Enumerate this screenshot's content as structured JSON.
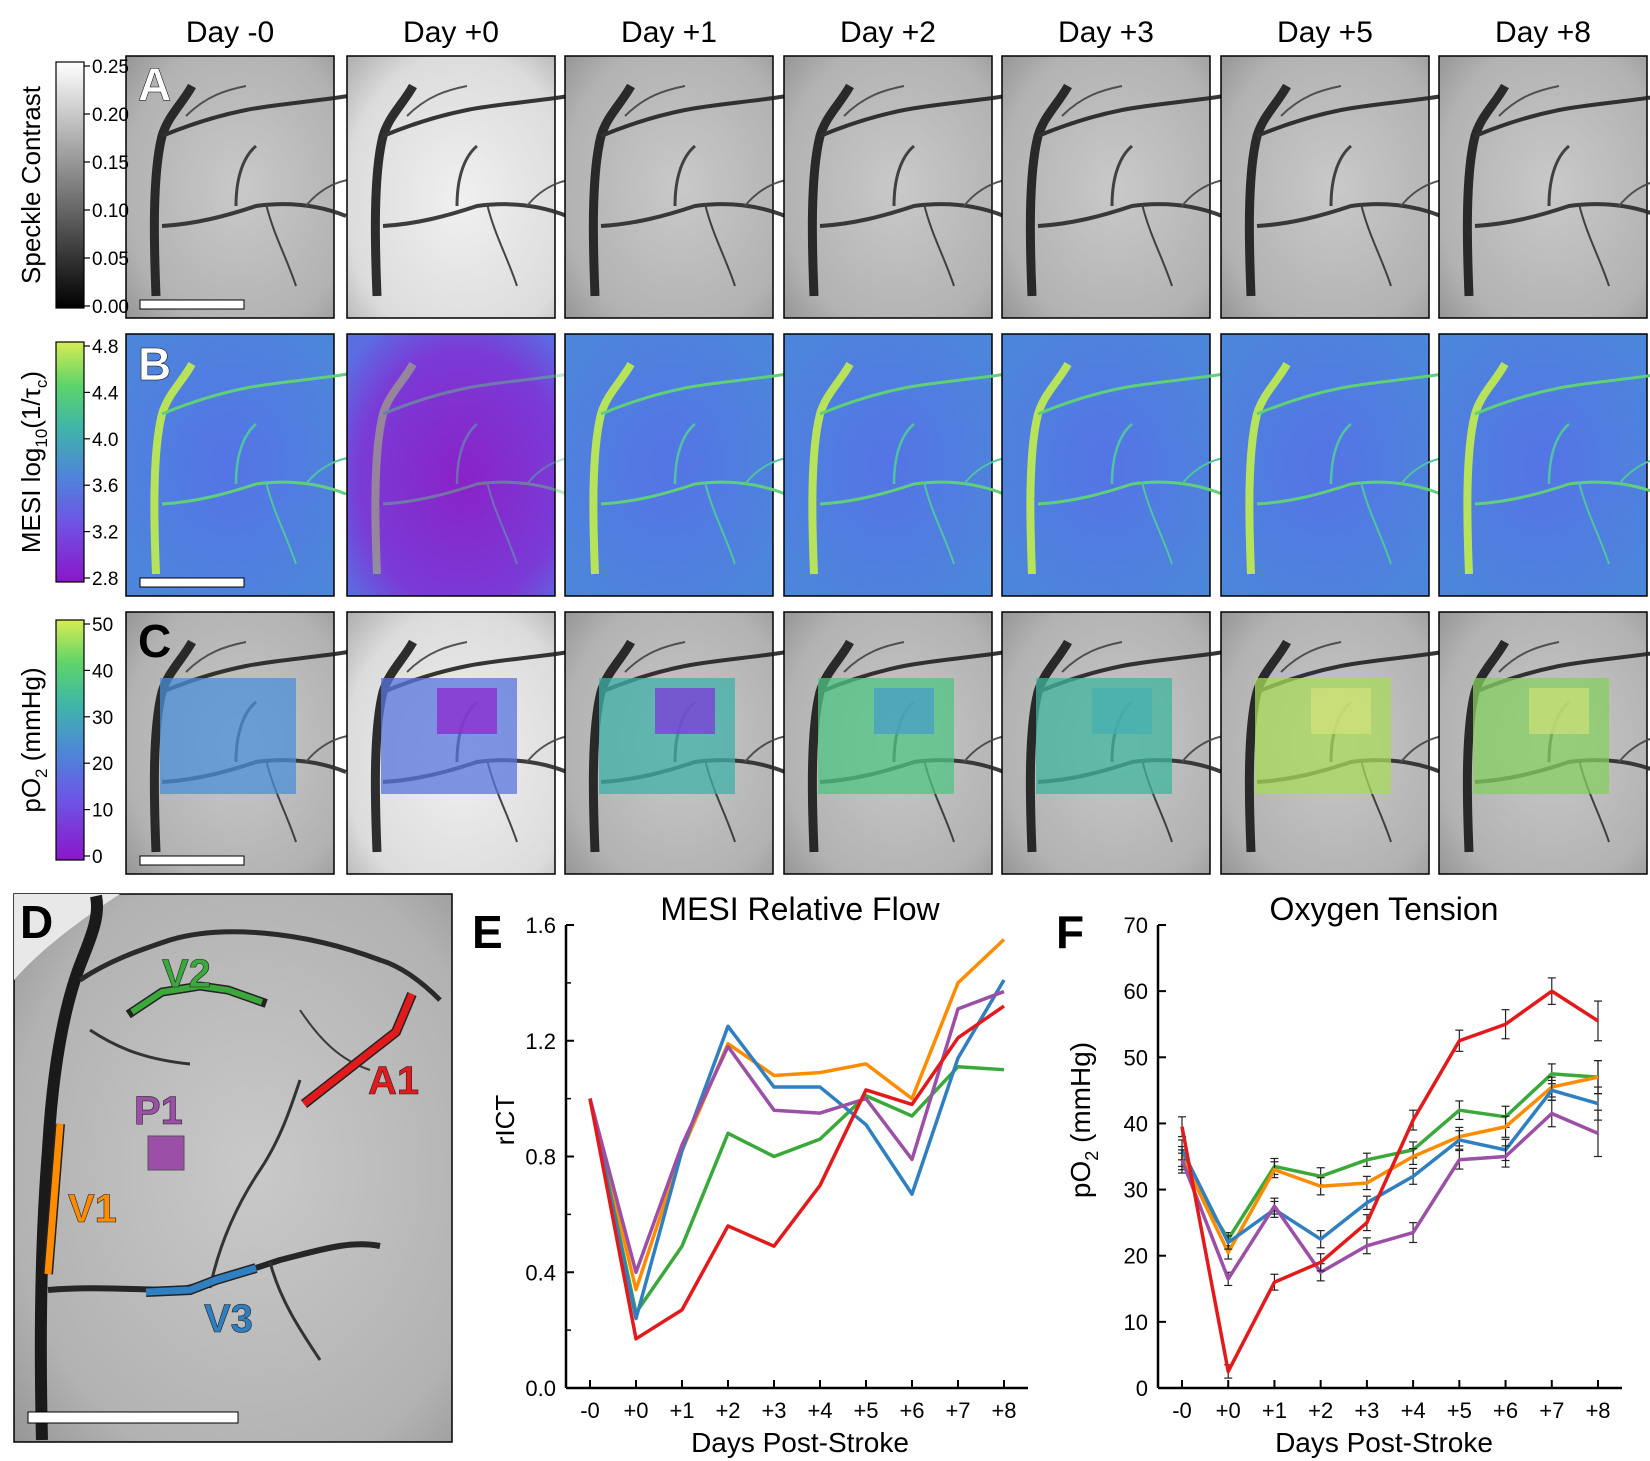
{
  "days": [
    "Day -0",
    "Day +0",
    "Day +1",
    "Day +2",
    "Day +3",
    "Day +5",
    "Day +8"
  ],
  "panel_letters": {
    "A": "A",
    "B": "B",
    "C": "C",
    "D": "D",
    "E": "E",
    "F": "F"
  },
  "rows": [
    {
      "id": "A",
      "colorbar_label": "Speckle Contrast",
      "colorbar_ticks": [
        "0.25",
        "0.20",
        "0.15",
        "0.10",
        "0.05",
        "0.00"
      ],
      "colormap": "gray"
    },
    {
      "id": "B",
      "colorbar_label_main": "MESI log",
      "colorbar_label_sub": "10",
      "colorbar_label_tail": "(1/τ",
      "colorbar_label_tail_sub": "c",
      "colorbar_label_close": ")",
      "colorbar_ticks": [
        "4.8",
        "4.4",
        "4.0",
        "3.6",
        "3.2",
        "2.8"
      ],
      "colormap": "viridis-like (purple→blue→green→yellow)"
    },
    {
      "id": "C",
      "colorbar_label_main": "pO",
      "colorbar_label_sub": "2",
      "colorbar_label_tail": " (mmHg)",
      "colorbar_ticks": [
        "50",
        "40",
        "30",
        "20",
        "10",
        "0"
      ],
      "colormap": "viridis-like (purple→blue→green→yellow)"
    }
  ],
  "roi_map": {
    "labels": [
      "V2",
      "A1",
      "P1",
      "V1",
      "V3"
    ],
    "colors": {
      "V1": "#ff8c00",
      "V2": "#3aa83a",
      "V3": "#2f7fc1",
      "A1": "#e31a1c",
      "P1": "#9b4fa6"
    }
  },
  "chart_data": [
    {
      "type": "line",
      "panel": "E",
      "title": "MESI Relative Flow",
      "xlabel": "Days Post-Stroke",
      "ylabel": "rICT",
      "categories": [
        "-0",
        "+0",
        "+1",
        "+2",
        "+3",
        "+4",
        "+5",
        "+6",
        "+7",
        "+8"
      ],
      "ylim": [
        0.0,
        1.6
      ],
      "yticks": [
        "0.0",
        "0.4",
        "0.8",
        "1.2",
        "1.6"
      ],
      "grid": false,
      "series": [
        {
          "color": "#ff8c00",
          "values": [
            1.0,
            0.34,
            0.82,
            1.19,
            1.08,
            1.09,
            1.12,
            1.0,
            1.4,
            1.55
          ]
        },
        {
          "color": "#3aa83a",
          "values": [
            1.0,
            0.26,
            0.49,
            0.88,
            0.8,
            0.86,
            1.01,
            0.94,
            1.11,
            1.1
          ]
        },
        {
          "color": "#2f7fc1",
          "values": [
            1.0,
            0.24,
            0.82,
            1.25,
            1.04,
            1.04,
            0.91,
            0.67,
            1.14,
            1.41
          ]
        },
        {
          "color": "#9b4fa6",
          "values": [
            1.0,
            0.4,
            0.84,
            1.18,
            0.96,
            0.95,
            1.0,
            0.79,
            1.31,
            1.37
          ]
        },
        {
          "color": "#e31a1c",
          "values": [
            1.0,
            0.17,
            0.27,
            0.56,
            0.49,
            0.7,
            1.03,
            0.98,
            1.21,
            1.32
          ]
        }
      ]
    },
    {
      "type": "line",
      "panel": "F",
      "title": "Oxygen Tension",
      "xlabel": "Days Post-Stroke",
      "ylabel_main": "pO",
      "ylabel_sub": "2",
      "ylabel_tail": " (mmHg)",
      "categories": [
        "-0",
        "+0",
        "+1",
        "+2",
        "+3",
        "+4",
        "+5",
        "+6",
        "+7",
        "+8"
      ],
      "ylim": [
        0,
        70
      ],
      "yticks": [
        "0",
        "10",
        "20",
        "30",
        "40",
        "50",
        "60",
        "70"
      ],
      "grid": false,
      "error_bars": true,
      "series": [
        {
          "color": "#3aa83a",
          "values": [
            34,
            22.5,
            33.5,
            32,
            34.5,
            36,
            42,
            41,
            47.5,
            47
          ],
          "errors": [
            1.5,
            1.0,
            1.2,
            1.3,
            1.0,
            1.2,
            1.4,
            1.6,
            1.5,
            2.5
          ]
        },
        {
          "color": "#ff8c00",
          "values": [
            35,
            20.5,
            33,
            30.5,
            31,
            35,
            38,
            39.5,
            45.5,
            47
          ],
          "errors": [
            1.5,
            1.0,
            1.2,
            1.3,
            1.0,
            1.2,
            1.4,
            1.6,
            1.5,
            2.5
          ]
        },
        {
          "color": "#2f7fc1",
          "values": [
            36,
            22,
            27,
            22.5,
            28,
            32,
            37.5,
            36,
            45,
            43
          ],
          "errors": [
            1.5,
            1.0,
            1.2,
            1.3,
            1.0,
            1.2,
            1.4,
            1.6,
            1.5,
            2.5
          ]
        },
        {
          "color": "#9b4fa6",
          "values": [
            34.5,
            16.5,
            27.5,
            17.5,
            21.5,
            23.5,
            34.5,
            35,
            41.5,
            38.5
          ],
          "errors": [
            1.5,
            1.0,
            1.2,
            1.3,
            1.2,
            1.5,
            1.4,
            1.6,
            2.0,
            3.5
          ]
        },
        {
          "color": "#e31a1c",
          "values": [
            39.5,
            2.5,
            16,
            19,
            25,
            40.5,
            52.5,
            55,
            60,
            55.5
          ],
          "errors": [
            1.5,
            1.0,
            1.2,
            1.3,
            1.2,
            1.5,
            1.6,
            2.2,
            2.0,
            3.0
          ]
        }
      ]
    }
  ]
}
